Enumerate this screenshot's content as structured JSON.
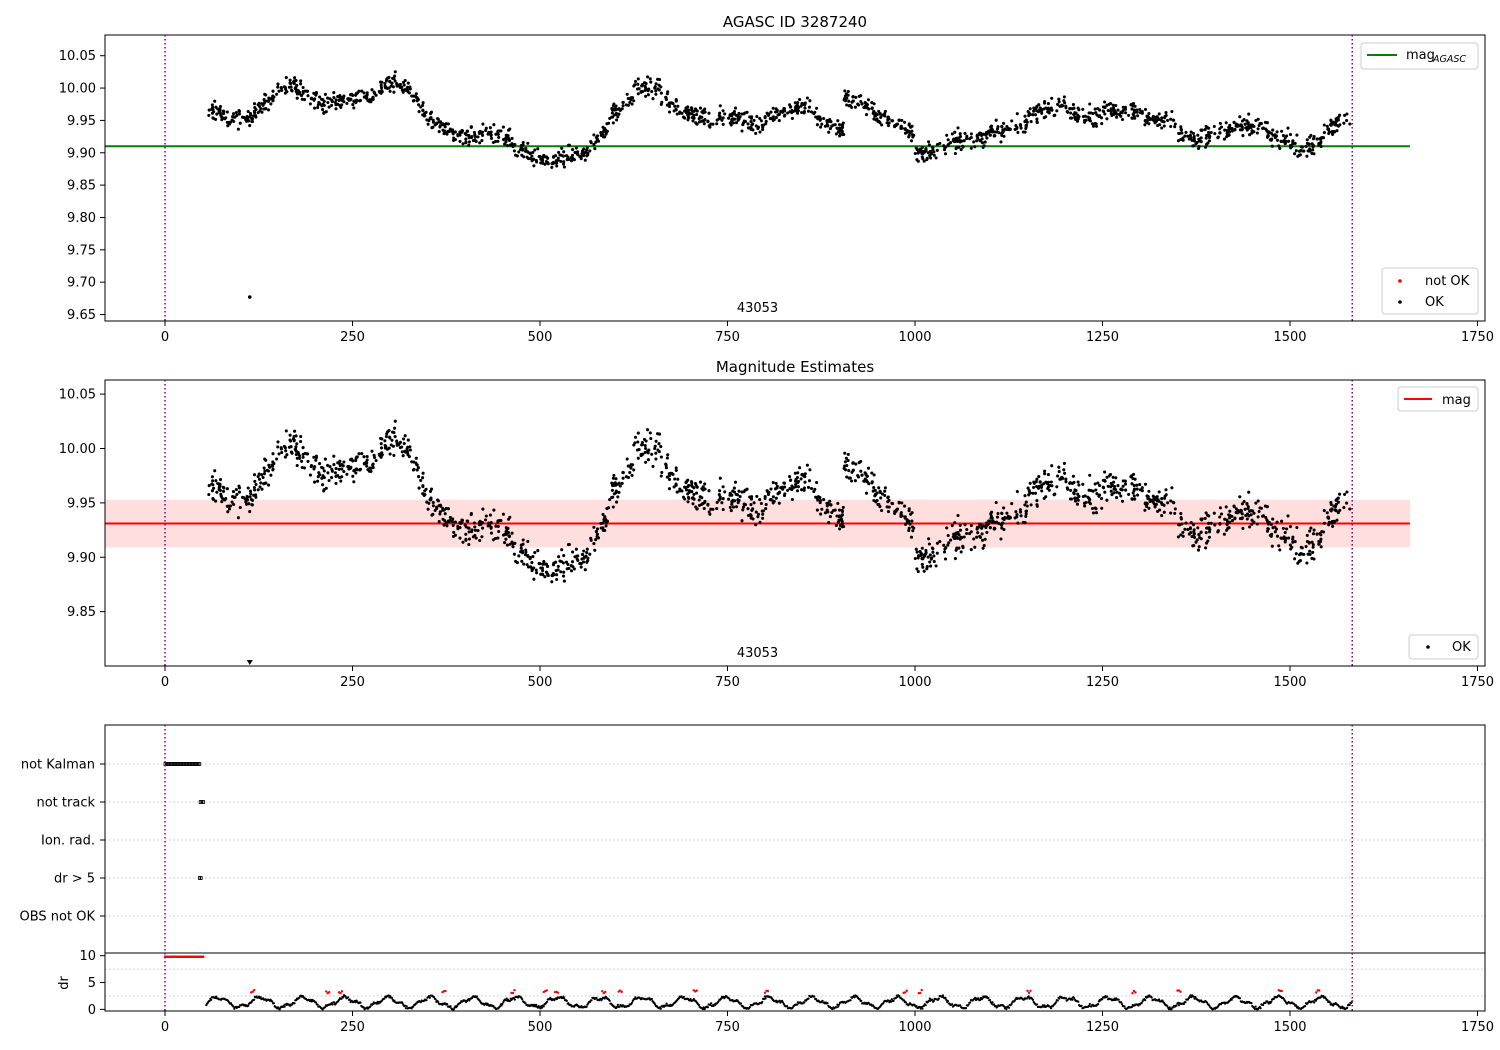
{
  "chart_data": [
    {
      "type": "scatter",
      "title": "AGASC ID 3287240",
      "xlim": [
        -80,
        1760
      ],
      "ylim": [
        9.64,
        10.082
      ],
      "x_ticks": [
        0,
        250,
        500,
        750,
        1000,
        1250,
        1500,
        1750
      ],
      "x_tick_labels": [
        "0",
        "250",
        "500",
        "750",
        "1000",
        "1250",
        "1500",
        "1750"
      ],
      "y_ticks": [
        9.65,
        9.7,
        9.75,
        9.8,
        9.85,
        9.9,
        9.95,
        10.0,
        10.05
      ],
      "y_tick_labels": [
        "9.65",
        "9.70",
        "9.75",
        "9.80",
        "9.85",
        "9.90",
        "9.95",
        "10.00",
        "10.05"
      ],
      "annotation": "43053",
      "annotation_x": 790,
      "reference_line": {
        "label": "mag",
        "label_sub": "AGASC",
        "value": 9.91,
        "x_range": [
          -80,
          1660
        ],
        "color": "#008000"
      },
      "vlines": {
        "x": [
          0,
          1583
        ],
        "color": "#800080",
        "style": "dotted"
      },
      "legend_top": {
        "position": "top-right",
        "entries": [
          {
            "label": "mag",
            "sub": "AGASC",
            "marker": "line",
            "color": "#008000"
          }
        ]
      },
      "legend_bottom": {
        "position": "lower-right",
        "entries": [
          {
            "label": "not OK",
            "marker": "dot",
            "color": "#ff0000"
          },
          {
            "label": "OK",
            "marker": "dot",
            "color": "#000000"
          }
        ]
      },
      "series": [
        {
          "name": "OK",
          "color": "#000000",
          "outliers": [
            {
              "x": 113,
              "y": 9.677
            }
          ],
          "segments": [
            {
              "x": [
                55,
                90
              ],
              "y": [
                9.97,
                9.95
              ]
            },
            {
              "x": [
                90,
                120
              ],
              "y": [
                9.95,
                9.96
              ]
            },
            {
              "x": [
                120,
                150
              ],
              "y": [
                9.96,
                9.995
              ]
            },
            {
              "x": [
                150,
                175
              ],
              "y": [
                9.995,
                10.005
              ]
            },
            {
              "x": [
                175,
                215
              ],
              "y": [
                10.0,
                9.975
              ]
            },
            {
              "x": [
                215,
                250
              ],
              "y": [
                9.975,
                9.985
              ]
            },
            {
              "x": [
                250,
                280
              ],
              "y": [
                9.985,
                9.99
              ]
            },
            {
              "x": [
                280,
                300
              ],
              "y": [
                9.99,
                10.01
              ]
            },
            {
              "x": [
                300,
                320
              ],
              "y": [
                10.01,
                10.0
              ]
            },
            {
              "x": [
                320,
                345
              ],
              "y": [
                10.0,
                9.975
              ]
            },
            {
              "x": [
                345,
                380
              ],
              "y": [
                9.96,
                9.93
              ]
            },
            {
              "x": [
                380,
                420
              ],
              "y": [
                9.93,
                9.925
              ]
            },
            {
              "x": [
                420,
                460
              ],
              "y": [
                9.93,
                9.925
              ]
            },
            {
              "x": [
                460,
                490
              ],
              "y": [
                9.91,
                9.895
              ]
            },
            {
              "x": [
                490,
                520
              ],
              "y": [
                9.89,
                9.885
              ]
            },
            {
              "x": [
                520,
                565
              ],
              "y": [
                9.89,
                9.9
              ]
            },
            {
              "x": [
                565,
                590
              ],
              "y": [
                9.91,
                9.94
              ]
            },
            {
              "x": [
                590,
                625
              ],
              "y": [
                9.95,
                9.99
              ]
            },
            {
              "x": [
                625,
                660
              ],
              "y": [
                10.0,
                10.0
              ]
            },
            {
              "x": [
                660,
                700
              ],
              "y": [
                9.985,
                9.96
              ]
            },
            {
              "x": [
                700,
                740
              ],
              "y": [
                9.96,
                9.95
              ]
            },
            {
              "x": [
                740,
                800
              ],
              "y": [
                9.96,
                9.94
              ]
            },
            {
              "x": [
                800,
                860
              ],
              "y": [
                9.955,
                9.975
              ]
            },
            {
              "x": [
                860,
                905
              ],
              "y": [
                9.96,
                9.935
              ]
            },
            {
              "x": [
                905,
                945
              ],
              "y": [
                9.985,
                9.97
              ]
            },
            {
              "x": [
                945,
                1000
              ],
              "y": [
                9.96,
                9.93
              ]
            },
            {
              "x": [
                1000,
                1040
              ],
              "y": [
                9.9,
                9.905
              ]
            },
            {
              "x": [
                1040,
                1100
              ],
              "y": [
                9.915,
                9.925
              ]
            },
            {
              "x": [
                1100,
                1150
              ],
              "y": [
                9.93,
                9.945
              ]
            },
            {
              "x": [
                1150,
                1200
              ],
              "y": [
                9.96,
                9.975
              ]
            },
            {
              "x": [
                1200,
                1250
              ],
              "y": [
                9.965,
                9.955
              ]
            },
            {
              "x": [
                1250,
                1300
              ],
              "y": [
                9.965,
                9.965
              ]
            },
            {
              "x": [
                1300,
                1350
              ],
              "y": [
                9.955,
                9.945
              ]
            },
            {
              "x": [
                1350,
                1380
              ],
              "y": [
                9.93,
                9.915
              ]
            },
            {
              "x": [
                1380,
                1420
              ],
              "y": [
                9.925,
                9.935
              ]
            },
            {
              "x": [
                1420,
                1470
              ],
              "y": [
                9.94,
                9.94
              ]
            },
            {
              "x": [
                1470,
                1510
              ],
              "y": [
                9.925,
                9.915
              ]
            },
            {
              "x": [
                1510,
                1545
              ],
              "y": [
                9.905,
                9.92
              ]
            },
            {
              "x": [
                1545,
                1580
              ],
              "y": [
                9.935,
                9.95
              ]
            }
          ]
        }
      ]
    },
    {
      "type": "scatter",
      "title": "Magnitude Estimates",
      "xlim": [
        -80,
        1760
      ],
      "ylim": [
        9.8,
        10.063
      ],
      "x_ticks": [
        0,
        250,
        500,
        750,
        1000,
        1250,
        1500,
        1750
      ],
      "x_tick_labels": [
        "0",
        "250",
        "500",
        "750",
        "1000",
        "1250",
        "1500",
        "1750"
      ],
      "y_ticks": [
        9.85,
        9.9,
        9.95,
        10.0,
        10.05
      ],
      "y_tick_labels": [
        "9.85",
        "9.90",
        "9.95",
        "10.00",
        "10.05"
      ],
      "annotation": "43053",
      "annotation_x": 790,
      "reference_line": {
        "label": "mag",
        "value": 9.931,
        "band": [
          9.909,
          9.953
        ],
        "x_range": [
          -80,
          1660
        ],
        "color": "#ff0000",
        "band_color": "#ffdede"
      },
      "vlines": {
        "x": [
          0,
          1583
        ],
        "color": "#800080",
        "style": "dotted"
      },
      "below_axis_marker": {
        "x": 113
      },
      "legend_top": {
        "position": "top-right",
        "entries": [
          {
            "label": "mag",
            "marker": "line",
            "color": "#ff0000"
          }
        ]
      },
      "legend_bottom": {
        "position": "lower-right",
        "entries": [
          {
            "label": "OK",
            "marker": "dot",
            "color": "#000000"
          }
        ]
      },
      "series": [
        {
          "name": "OK",
          "color": "#000000",
          "same_as_panel": 0
        }
      ]
    },
    {
      "type": "scatter",
      "title": "",
      "xlim": [
        -80,
        1760
      ],
      "x_ticks": [
        0,
        250,
        500,
        750,
        1000,
        1250,
        1500,
        1750
      ],
      "x_tick_labels": [
        "0",
        "250",
        "500",
        "750",
        "1000",
        "1250",
        "1500",
        "1750"
      ],
      "flag_categories": [
        "not Kalman",
        "not track",
        "Ion. rad.",
        "dr > 5",
        "OBS not OK"
      ],
      "flags": [
        {
          "category": "not Kalman",
          "x_range": [
            0,
            47
          ]
        },
        {
          "category": "not track",
          "x_range": [
            47,
            52
          ]
        },
        {
          "category": "dr > 5",
          "x_range": [
            46,
            48
          ]
        }
      ],
      "dr_panel": {
        "ylabel": "dr",
        "ylim": [
          -0.3,
          10.5
        ],
        "y_ticks": [
          0,
          5,
          10
        ],
        "y_tick_labels": [
          "0",
          "5",
          "10"
        ],
        "high_segment": {
          "x_range": [
            0,
            52
          ],
          "value": 9.8,
          "color": "#ff0000"
        },
        "baseline_range": [
          55,
          1583
        ],
        "red_points_x": [
          115,
          215,
          232,
          370,
          462,
          505,
          520,
          583,
          605,
          705,
          800,
          985,
          1005,
          1150,
          1290,
          1350,
          1485,
          1535
        ]
      },
      "vlines": {
        "x": [
          0,
          1583
        ],
        "color": "#800080",
        "style": "dotted"
      }
    }
  ]
}
